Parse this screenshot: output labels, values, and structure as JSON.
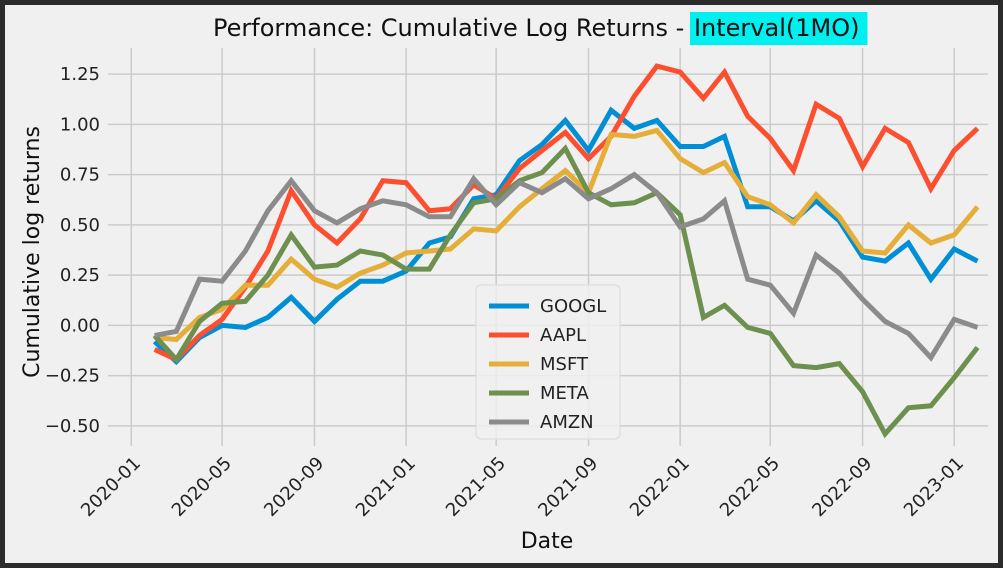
{
  "chart_data": {
    "type": "line",
    "title": "Performance: Cumulative Log Returns - ",
    "title_highlight": "Interval(1MO)",
    "title_highlight_color": "#00f0f0",
    "xlabel": "Date",
    "ylabel": "Cumulative log returns",
    "ylim": [
      -0.6,
      1.38
    ],
    "xlim": [
      "2019-12-01",
      "2023-02-15"
    ],
    "yticks": [
      -0.5,
      -0.25,
      0.0,
      0.25,
      0.5,
      0.75,
      1.0,
      1.25
    ],
    "ytick_labels": [
      "−0.50",
      "−0.25",
      "0.00",
      "0.25",
      "0.50",
      "0.75",
      "1.00",
      "1.25"
    ],
    "xticks": [
      "2020-01-01",
      "2020-05-01",
      "2020-09-01",
      "2021-01-01",
      "2021-05-01",
      "2021-09-01",
      "2022-01-01",
      "2022-05-01",
      "2022-09-01",
      "2023-01-01"
    ],
    "xtick_labels": [
      "2020-01",
      "2020-05",
      "2020-09",
      "2021-01",
      "2021-05",
      "2021-09",
      "2022-01",
      "2022-05",
      "2022-09",
      "2023-01"
    ],
    "grid": true,
    "legend_position": "lower-center",
    "x": [
      "2020-02-01",
      "2020-03-01",
      "2020-04-01",
      "2020-05-01",
      "2020-06-01",
      "2020-07-01",
      "2020-08-01",
      "2020-09-01",
      "2020-10-01",
      "2020-11-01",
      "2020-12-01",
      "2021-01-01",
      "2021-02-01",
      "2021-03-01",
      "2021-04-01",
      "2021-05-01",
      "2021-06-01",
      "2021-07-01",
      "2021-08-01",
      "2021-09-01",
      "2021-10-01",
      "2021-11-01",
      "2021-12-01",
      "2022-01-01",
      "2022-02-01",
      "2022-03-01",
      "2022-04-01",
      "2022-05-01",
      "2022-06-01",
      "2022-07-01",
      "2022-08-01",
      "2022-09-01",
      "2022-10-01",
      "2022-11-01",
      "2022-12-01",
      "2023-01-01",
      "2023-02-01"
    ],
    "series": [
      {
        "name": "GOOGL",
        "color": "#008fd5",
        "values": [
          -0.08,
          -0.18,
          -0.06,
          0.0,
          -0.01,
          0.04,
          0.14,
          0.02,
          0.13,
          0.22,
          0.22,
          0.27,
          0.41,
          0.44,
          0.63,
          0.65,
          0.82,
          0.9,
          1.02,
          0.87,
          1.07,
          0.98,
          1.02,
          0.89,
          0.89,
          0.94,
          0.59,
          0.59,
          0.52,
          0.62,
          0.52,
          0.34,
          0.32,
          0.41,
          0.23,
          0.38,
          0.32
        ]
      },
      {
        "name": "AAPL",
        "color": "#fc4f30",
        "values": [
          -0.12,
          -0.17,
          -0.05,
          0.03,
          0.19,
          0.37,
          0.67,
          0.5,
          0.41,
          0.53,
          0.72,
          0.71,
          0.57,
          0.58,
          0.7,
          0.63,
          0.78,
          0.87,
          0.96,
          0.83,
          0.94,
          1.14,
          1.29,
          1.26,
          1.13,
          1.26,
          1.04,
          0.93,
          0.77,
          1.1,
          1.03,
          0.79,
          0.98,
          0.91,
          0.68,
          0.87,
          0.98
        ]
      },
      {
        "name": "MSFT",
        "color": "#e5ae38",
        "values": [
          -0.06,
          -0.07,
          0.04,
          0.08,
          0.2,
          0.2,
          0.33,
          0.23,
          0.19,
          0.26,
          0.3,
          0.36,
          0.37,
          0.38,
          0.48,
          0.47,
          0.59,
          0.68,
          0.77,
          0.66,
          0.95,
          0.94,
          0.97,
          0.83,
          0.76,
          0.81,
          0.64,
          0.6,
          0.51,
          0.65,
          0.54,
          0.37,
          0.36,
          0.5,
          0.41,
          0.45,
          0.59
        ]
      },
      {
        "name": "META",
        "color": "#6d904f",
        "values": [
          -0.05,
          -0.17,
          0.02,
          0.11,
          0.12,
          0.25,
          0.45,
          0.29,
          0.3,
          0.37,
          0.35,
          0.28,
          0.28,
          0.45,
          0.61,
          0.63,
          0.72,
          0.76,
          0.88,
          0.66,
          0.6,
          0.61,
          0.66,
          0.55,
          0.04,
          0.1,
          -0.01,
          -0.04,
          -0.2,
          -0.21,
          -0.19,
          -0.33,
          -0.54,
          -0.41,
          -0.4,
          -0.26,
          -0.11
        ]
      },
      {
        "name": "AMZN",
        "color": "#8b8b8b",
        "values": [
          -0.05,
          -0.03,
          0.23,
          0.22,
          0.37,
          0.57,
          0.72,
          0.57,
          0.51,
          0.58,
          0.62,
          0.6,
          0.54,
          0.54,
          0.73,
          0.6,
          0.71,
          0.66,
          0.73,
          0.63,
          0.68,
          0.75,
          0.66,
          0.49,
          0.53,
          0.62,
          0.23,
          0.2,
          0.06,
          0.35,
          0.26,
          0.13,
          0.02,
          -0.04,
          -0.16,
          0.03,
          -0.01
        ]
      }
    ]
  }
}
